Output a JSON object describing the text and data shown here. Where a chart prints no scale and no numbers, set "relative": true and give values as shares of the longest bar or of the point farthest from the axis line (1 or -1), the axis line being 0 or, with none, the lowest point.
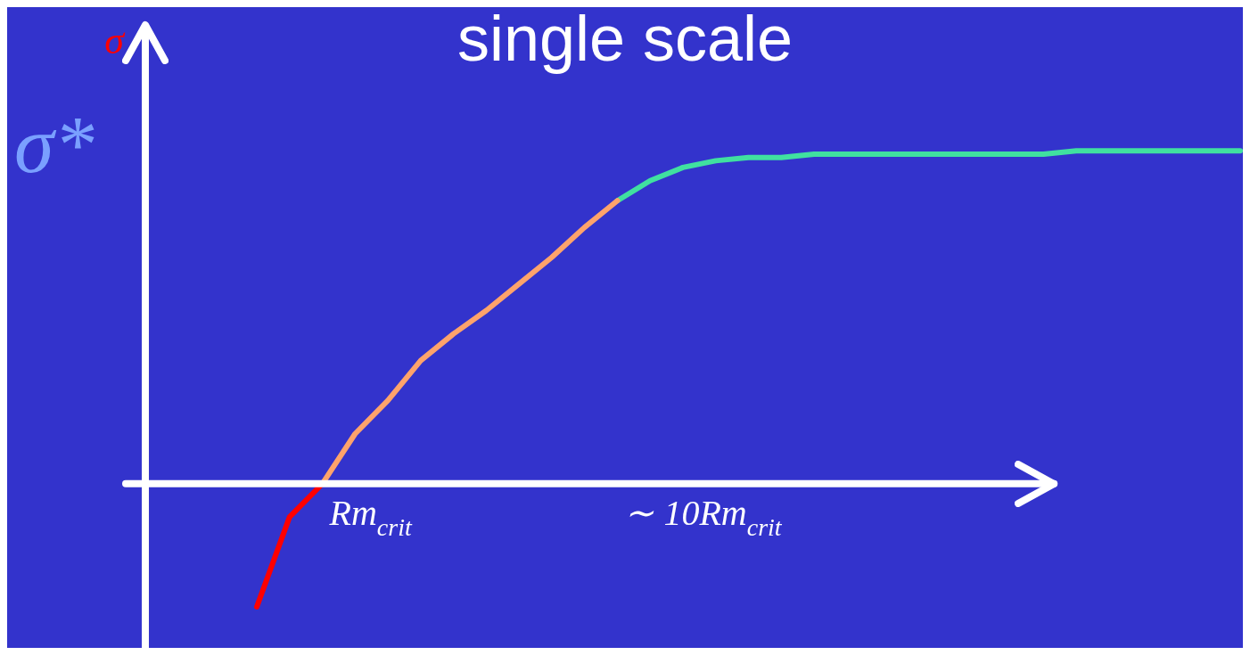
{
  "chart_data": {
    "type": "line",
    "title": "single scale",
    "ylabel": "σ",
    "relative": true,
    "categories": [
      null,
      null,
      null,
      null,
      null,
      null,
      null,
      null,
      null,
      null,
      null,
      null,
      null,
      null,
      null,
      null,
      null,
      null,
      null,
      null,
      null,
      null,
      null,
      null,
      null,
      null,
      null,
      null,
      null,
      null,
      null
    ],
    "annotations": [
      "Rm$_{crit}$",
      "∼ 10Rm$_{crit}$",
      "σ*"
    ],
    "grid": false,
    "legend": false,
    "marker": "none",
    "line_style": "solid",
    "series": [
      {
        "color": "#ff0000",
        "values": [
          -0.37,
          -0.1,
          0,
          null,
          null,
          null,
          null,
          null,
          null,
          null,
          null,
          null,
          null,
          null,
          null,
          null,
          null,
          null,
          null,
          null,
          null,
          null,
          null,
          null,
          null,
          null,
          null,
          null,
          null,
          null,
          null
        ]
      },
      {
        "color": "#ffa36b",
        "values": [
          null,
          null,
          0,
          0.15,
          0.25,
          0.37,
          0.45,
          0.52,
          0.6,
          0.68,
          0.77,
          0.85,
          null,
          null,
          null,
          null,
          null,
          null,
          null,
          null,
          null,
          null,
          null,
          null,
          null,
          null,
          null,
          null,
          null,
          null,
          null
        ]
      },
      {
        "color": "#40e0a0",
        "values": [
          null,
          null,
          null,
          null,
          null,
          null,
          null,
          null,
          null,
          null,
          null,
          0.85,
          0.91,
          0.95,
          0.97,
          0.98,
          0.98,
          0.99,
          0.99,
          0.99,
          0.99,
          0.99,
          0.99,
          0.99,
          0.99,
          1,
          1,
          1,
          1,
          1,
          1
        ]
      }
    ]
  }
}
